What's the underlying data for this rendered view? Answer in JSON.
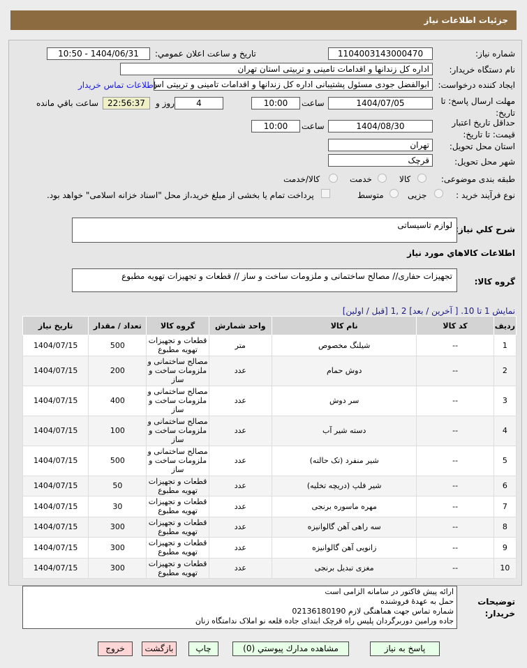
{
  "header": {
    "title": "جزئيات اطلاعات نياز"
  },
  "fields": {
    "need_number_label": "شماره نیاز:",
    "need_number": "1104003143000470",
    "announce_label": "تاريخ و ساعت اعلان عمومي:",
    "announce": "1404/06/31 - 10:50",
    "buyer_label": "نام دستگاه خريدار:",
    "buyer": "اداره كل زندانها و اقدامات تامینی و تربیتی استان تهران",
    "creator_label": "ايجاد كننده درخواست:",
    "creator": "ابوالفضل جودی مسئول پشتیبانی  اداره كل زندانها و اقدامات تامینی و تربیتی اس",
    "contact_link": "اطلاعات تماس خريدار",
    "deadline_label": "مهلت ارسال پاسخ: تا تاريخ:",
    "deadline_date": "1404/07/05",
    "time_label": "ساعت",
    "deadline_time": "10:00",
    "days": "4",
    "days_label": "روز و",
    "remaining": "22:56:37",
    "remaining_label": "ساعت باقي مانده",
    "validity_label": "حداقل تاريخ اعتبار قيمت: تا تاريخ:",
    "validity_date": "1404/08/30",
    "validity_time": "10:00",
    "province_label": "استان محل تحويل:",
    "province": "تهران",
    "city_label": "شهر محل تحويل:",
    "city": "قرچک",
    "category_label": "طبقه بندی موضوعی:",
    "cat_options": [
      "كالا",
      "خدمت",
      "كالا/خدمت"
    ],
    "process_label": "نوع فرآيند خريد :",
    "process_options": [
      "جزیی",
      "متوسط"
    ],
    "payment_note": "پرداخت تمام يا بخشی از مبلغ خريد،از محل \"اسناد خزانه اسلامی\" خواهد بود."
  },
  "description": {
    "label": "شرح كلي نياز:",
    "value": "لوازم تاسیساتی"
  },
  "goods": {
    "heading": "اطلاعات كالاهاي مورد نياز",
    "group_label": "گروه كالا:",
    "group_value": "تجهیزات حفاری// مصالح ساختمانی و ملزومات ساخت و ساز //  قطعات و تجهیزات تهویه مطبوع",
    "paging": "نمایش 1 تا 10. [ آخرين / بعد] 2 ,1 [قبل / اولين]",
    "columns": [
      "رديف",
      "كد كالا",
      "نام كالا",
      "واحد شمارش",
      "گروه كالا",
      "تعداد / مقدار",
      "تاريخ نياز"
    ],
    "rows": [
      [
        "1",
        "--",
        "شیلنگ مخصوص",
        "متر",
        "قطعات و تجهیزات تهویه مطبوع",
        "500",
        "1404/07/15"
      ],
      [
        "2",
        "--",
        "دوش حمام",
        "عدد",
        "مصالح ساختمانی و ملزومات ساخت و ساز",
        "200",
        "1404/07/15"
      ],
      [
        "3",
        "--",
        "سر دوش",
        "عدد",
        "مصالح ساختمانی و ملزومات ساخت و ساز",
        "400",
        "1404/07/15"
      ],
      [
        "4",
        "--",
        "دسته شیر آب",
        "عدد",
        "مصالح ساختمانی و ملزومات ساخت و ساز",
        "100",
        "1404/07/15"
      ],
      [
        "5",
        "--",
        "شیر منفرد (تک حالته)",
        "عدد",
        "مصالح ساختمانی و ملزومات ساخت و ساز",
        "500",
        "1404/07/15"
      ],
      [
        "6",
        "--",
        "شیر فلپ (دریچه تخلیه)",
        "عدد",
        "قطعات و تجهیزات تهویه مطبوع",
        "50",
        "1404/07/15"
      ],
      [
        "7",
        "--",
        "مهره ماسوره برنجی",
        "عدد",
        "قطعات و تجهیزات تهویه مطبوع",
        "30",
        "1404/07/15"
      ],
      [
        "8",
        "--",
        "سه راهی آهن گالوانیزه",
        "عدد",
        "قطعات و تجهیزات تهویه مطبوع",
        "300",
        "1404/07/15"
      ],
      [
        "9",
        "--",
        "زانویی آهن گالوانیزه",
        "عدد",
        "قطعات و تجهیزات تهویه مطبوع",
        "300",
        "1404/07/15"
      ],
      [
        "10",
        "--",
        "مغزی تبدیل برنجی",
        "عدد",
        "قطعات و تجهیزات تهویه مطبوع",
        "300",
        "1404/07/15"
      ]
    ]
  },
  "notes": {
    "label": "توضيحات خريدار:",
    "lines": [
      "ارائه پیش فاکتور در سامانه الزامی است",
      "حمل به عهدۀ فروشنده",
      "شماره تماس جهت هماهنگی لازم  02136180190",
      "جاده ورامین دوربرگردان پلیس راه قرچک ابتدای جاده قلعه نو املاک ندامتگاه زنان"
    ]
  },
  "buttons": {
    "reply": "پاسخ به نياز",
    "docs": "مشاهده مدارك پيوستي (0)",
    "print": "چاپ",
    "back": "بازگشت",
    "exit": "خروج"
  }
}
